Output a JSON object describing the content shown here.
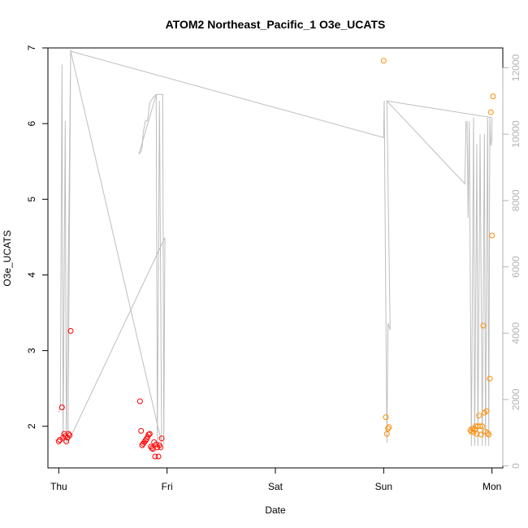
{
  "chart_data": {
    "type": "scatter",
    "title": "ATOM2 Northeast_Pacific_1 O3e_UCATS",
    "xlabel": "Date",
    "ylabel": "O3e_UCATS",
    "x_unit": "days",
    "xlim": [
      -0.1,
      4.1
    ],
    "ylim": [
      1.45,
      7.0
    ],
    "x_ticks": [
      {
        "value": 0,
        "label": "Thu"
      },
      {
        "value": 1,
        "label": "Fri"
      },
      {
        "value": 2,
        "label": "Sat"
      },
      {
        "value": 3,
        "label": "Sun"
      },
      {
        "value": 4,
        "label": "Mon"
      }
    ],
    "y_ticks": [
      2,
      3,
      4,
      5,
      6,
      7
    ],
    "right_axis": {
      "ylim": [
        -60,
        12600
      ],
      "ticks": [
        0,
        2000,
        4000,
        6000,
        8000,
        10000,
        12000
      ],
      "color": "#b3b3b3"
    },
    "series": [
      {
        "color": "#ff0000",
        "marker": "circle-open",
        "points": [
          [
            0.0,
            1.8
          ],
          [
            0.01,
            1.82
          ],
          [
            0.03,
            2.25
          ],
          [
            0.04,
            1.85
          ],
          [
            0.05,
            1.9
          ],
          [
            0.06,
            1.87
          ],
          [
            0.07,
            1.8
          ],
          [
            0.08,
            1.85
          ],
          [
            0.09,
            1.9
          ],
          [
            0.1,
            1.88
          ],
          [
            0.11,
            3.26
          ],
          [
            0.75,
            2.33
          ],
          [
            0.76,
            1.94
          ],
          [
            0.77,
            1.75
          ],
          [
            0.78,
            1.77
          ],
          [
            0.79,
            1.79
          ],
          [
            0.8,
            1.81
          ],
          [
            0.81,
            1.83
          ],
          [
            0.82,
            1.86
          ],
          [
            0.83,
            1.89
          ],
          [
            0.84,
            1.9
          ],
          [
            0.85,
            1.73
          ],
          [
            0.86,
            1.71
          ],
          [
            0.87,
            1.7
          ],
          [
            0.88,
            1.79
          ],
          [
            0.89,
            1.6
          ],
          [
            0.9,
            1.76
          ],
          [
            0.91,
            1.72
          ],
          [
            0.92,
            1.6
          ],
          [
            0.93,
            1.75
          ],
          [
            0.94,
            1.72
          ],
          [
            0.95,
            1.84
          ]
        ]
      },
      {
        "color": "#ff8c00",
        "marker": "circle-open",
        "points": [
          [
            3.0,
            6.83
          ],
          [
            3.02,
            2.12
          ],
          [
            3.03,
            1.9
          ],
          [
            3.04,
            1.97
          ],
          [
            3.05,
            1.99
          ],
          [
            3.8,
            1.95
          ],
          [
            3.81,
            1.93
          ],
          [
            3.82,
            1.97
          ],
          [
            3.83,
            1.92
          ],
          [
            3.84,
            1.96
          ],
          [
            3.85,
            2.0
          ],
          [
            3.86,
            1.9
          ],
          [
            3.87,
            2.0
          ],
          [
            3.88,
            2.14
          ],
          [
            3.89,
            2.0
          ],
          [
            3.9,
            1.89
          ],
          [
            3.91,
            2.0
          ],
          [
            3.92,
            3.33
          ],
          [
            3.93,
            2.18
          ],
          [
            3.94,
            1.93
          ],
          [
            3.95,
            2.2
          ],
          [
            3.96,
            1.91
          ],
          [
            3.97,
            1.89
          ],
          [
            3.98,
            2.63
          ],
          [
            3.99,
            6.15
          ],
          [
            4.0,
            4.52
          ],
          [
            4.01,
            6.36
          ]
        ]
      }
    ],
    "secondary_line": {
      "color": "#bebebe",
      "points": [
        [
          0.0,
          1615
        ],
        [
          0.015,
          1800
        ],
        [
          0.03,
          12100
        ],
        [
          0.04,
          700
        ],
        [
          0.06,
          10400
        ],
        [
          0.07,
          700
        ],
        [
          0.11,
          12550
        ],
        [
          0.085,
          700
        ],
        [
          0.98,
          6880
        ],
        [
          0.97,
          620
        ],
        [
          0.96,
          11200
        ],
        [
          0.94,
          11200
        ],
        [
          0.9,
          11200
        ],
        [
          0.87,
          11100
        ],
        [
          0.84,
          10950
        ],
        [
          0.82,
          10400
        ],
        [
          0.8,
          10400
        ],
        [
          0.79,
          10230
        ],
        [
          0.78,
          10050
        ],
        [
          0.77,
          9630
        ],
        [
          0.76,
          9480
        ],
        [
          0.74,
          9400
        ],
        [
          0.9,
          11200
        ],
        [
          0.91,
          620
        ],
        [
          0.93,
          11000
        ],
        [
          0.95,
          700
        ],
        [
          0.11,
          12500
        ],
        [
          3.0,
          9900
        ],
        [
          3.005,
          11000
        ],
        [
          3.03,
          700
        ],
        [
          3.04,
          4300
        ],
        [
          3.06,
          4100
        ],
        [
          3.03,
          11000
        ],
        [
          3.75,
          8500
        ],
        [
          3.76,
          10380
        ],
        [
          3.77,
          10380
        ],
        [
          3.78,
          7470
        ],
        [
          3.79,
          10380
        ],
        [
          3.81,
          600
        ],
        [
          3.83,
          10500
        ],
        [
          3.84,
          600
        ],
        [
          3.86,
          9700
        ],
        [
          3.87,
          600
        ],
        [
          3.89,
          10000
        ],
        [
          3.91,
          600
        ],
        [
          3.93,
          10000
        ],
        [
          3.94,
          600
        ],
        [
          3.96,
          10500
        ],
        [
          3.97,
          600
        ],
        [
          3.98,
          10500
        ],
        [
          3.99,
          9650
        ],
        [
          4.0,
          9900
        ],
        [
          4.0,
          10500
        ],
        [
          3.03,
          11000
        ]
      ]
    },
    "grid": false,
    "legend": "none"
  }
}
